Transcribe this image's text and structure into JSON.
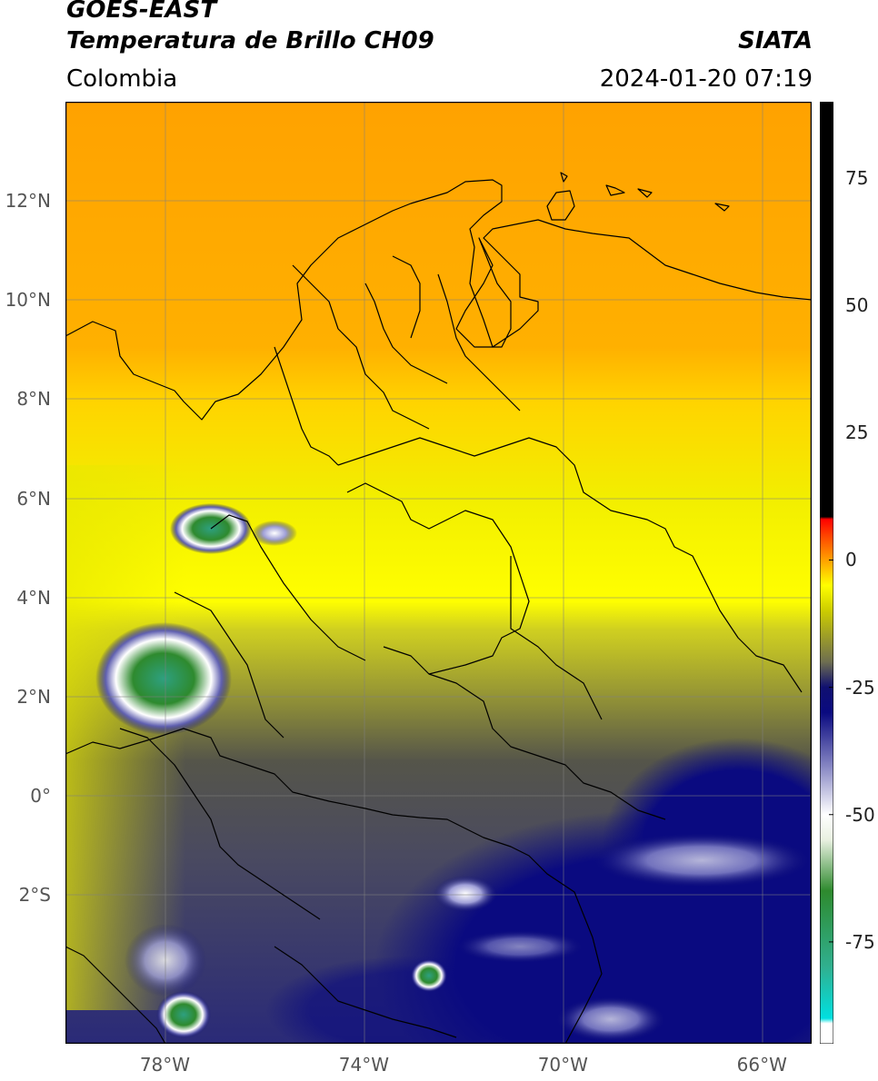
{
  "header": {
    "satellite": "GOES-EAST",
    "product": "Temperatura de Brillo CH09",
    "region": "Colombia",
    "organization": "SIATA",
    "datetime": "2024-01-20 07:19"
  },
  "map": {
    "lon_range": [
      -80,
      -65
    ],
    "lat_range": [
      -5,
      14
    ],
    "lat_ticks": [
      {
        "value": 12,
        "label": "12°N"
      },
      {
        "value": 10,
        "label": "10°N"
      },
      {
        "value": 8,
        "label": "8°N"
      },
      {
        "value": 6,
        "label": "6°N"
      },
      {
        "value": 4,
        "label": "4°N"
      },
      {
        "value": 2,
        "label": "2°N"
      },
      {
        "value": 0,
        "label": "0°"
      },
      {
        "value": -2,
        "label": "2°S"
      }
    ],
    "lon_ticks": [
      {
        "value": -78,
        "label": "78°W"
      },
      {
        "value": -74,
        "label": "74°W"
      },
      {
        "value": -70,
        "label": "70°W"
      },
      {
        "value": -66,
        "label": "66°W"
      }
    ]
  },
  "colorbar": {
    "range": [
      -95,
      90
    ],
    "ticks": [
      {
        "value": 75,
        "label": "75"
      },
      {
        "value": 50,
        "label": "50"
      },
      {
        "value": 25,
        "label": "25"
      },
      {
        "value": 0,
        "label": "0"
      },
      {
        "value": -25,
        "label": "-25"
      },
      {
        "value": -50,
        "label": "-50"
      },
      {
        "value": -75,
        "label": "-75"
      }
    ],
    "stops": [
      {
        "value": -95,
        "color": "#ffffff"
      },
      {
        "value": -91,
        "color": "#ffffff"
      },
      {
        "value": -90,
        "color": "#00e0e0"
      },
      {
        "value": -80,
        "color": "#30b090"
      },
      {
        "value": -65,
        "color": "#2e8a2e"
      },
      {
        "value": -55,
        "color": "#e8f0e0"
      },
      {
        "value": -50,
        "color": "#ffffff"
      },
      {
        "value": -40,
        "color": "#8080c0"
      },
      {
        "value": -30,
        "color": "#0a0a80"
      },
      {
        "value": -25,
        "color": "#101070"
      },
      {
        "value": -20,
        "color": "#6e6e50"
      },
      {
        "value": -10,
        "color": "#cccc00"
      },
      {
        "value": -5,
        "color": "#ffff00"
      },
      {
        "value": 0,
        "color": "#ffa000"
      },
      {
        "value": 5,
        "color": "#ff4000"
      },
      {
        "value": 8,
        "color": "#ff0000"
      },
      {
        "value": 8.5,
        "color": "#000000"
      },
      {
        "value": 90,
        "color": "#000000"
      }
    ]
  }
}
